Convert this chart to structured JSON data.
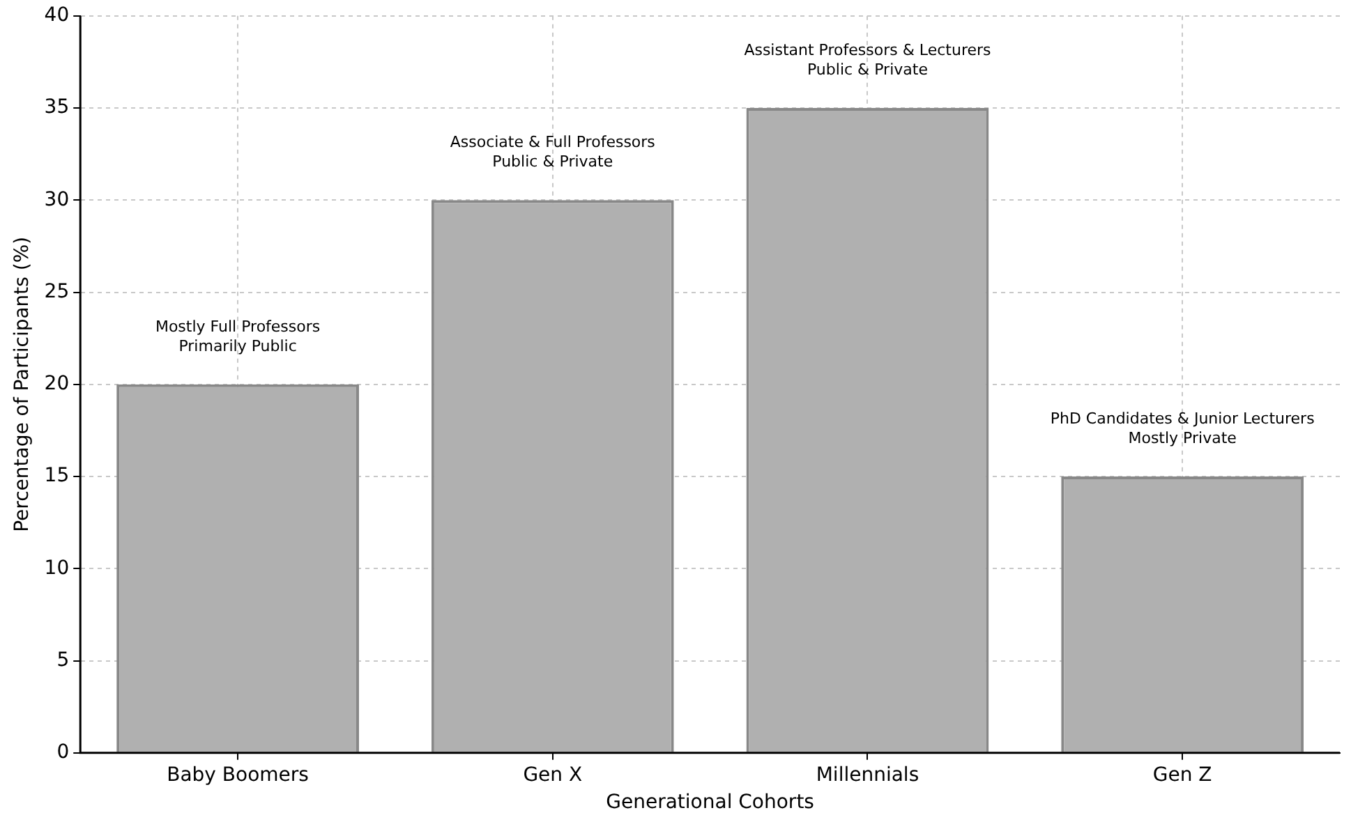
{
  "chart_data": {
    "type": "bar",
    "xlabel": "Generational Cohorts",
    "ylabel": "Percentage of Participants (%)",
    "categories": [
      "Baby Boomers",
      "Gen X",
      "Millennials",
      "Gen Z"
    ],
    "values": [
      20,
      30,
      35,
      15
    ],
    "color": "#b0b0b0",
    "ylim": [
      0,
      40
    ],
    "yticks": [
      0,
      5,
      10,
      15,
      20,
      25,
      30,
      35,
      40
    ],
    "grid": true,
    "annotations": [
      {
        "text": "Mostly Full Professors\nPrimarily Public",
        "x": "Baby Boomers",
        "y": 20
      },
      {
        "text": "Associate & Full Professors\nPublic & Private",
        "x": "Gen X",
        "y": 30
      },
      {
        "text": "Assistant Professors & Lecturers\nPublic & Private",
        "x": "Millennials",
        "y": 35
      },
      {
        "text": "PhD Candidates & Junior Lecturers\nMostly Private",
        "x": "Gen Z",
        "y": 15
      }
    ]
  }
}
